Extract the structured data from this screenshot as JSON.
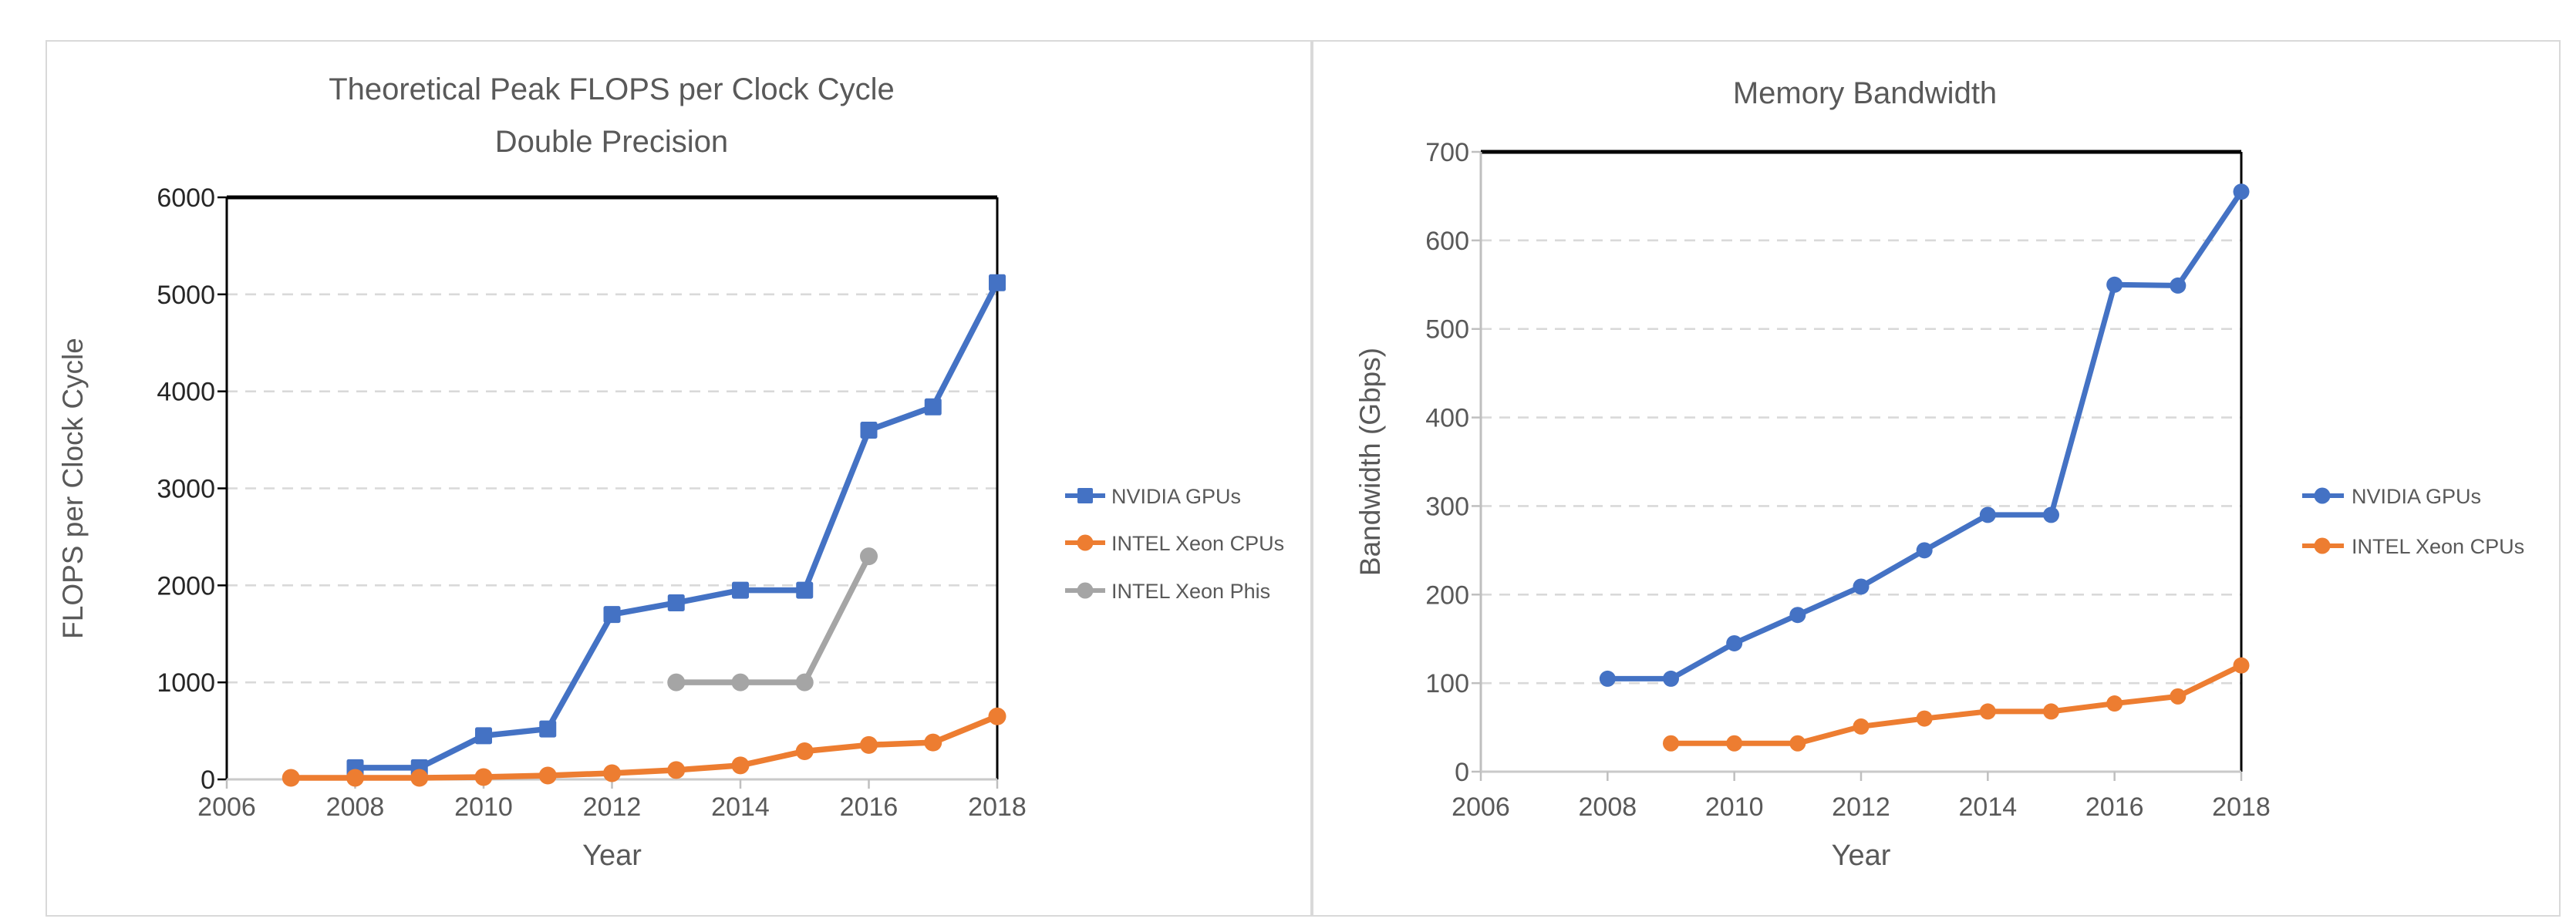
{
  "page": {
    "background": "#ffffff"
  },
  "style": {
    "panel_border": "#D9D9D9",
    "text_color": "#595959",
    "dark_tick_color": "#262626",
    "grid_color": "#D9D9D9",
    "axis_black": "#000000",
    "axis_gray": "#BFBFBF",
    "axis_bottom_gray": "#C9C9C9"
  },
  "chart_data": [
    {
      "id": "flops-per-cycle",
      "type": "line",
      "title": "Theoretical Peak FLOPS per Clock Cycle",
      "subtitle": "Double Precision",
      "xlabel": "Year",
      "ylabel": "FLOPS per Clock Cycle",
      "xlim": [
        2006,
        2018
      ],
      "ylim": [
        0,
        6000
      ],
      "x_ticks": [
        2006,
        2008,
        2010,
        2012,
        2014,
        2016,
        2018
      ],
      "y_ticks": [
        0,
        1000,
        2000,
        3000,
        4000,
        5000,
        6000
      ],
      "grid": "horizontal-dashed",
      "legend_position": "right",
      "y_tick_color": "#262626",
      "series": [
        {
          "name": "NVIDIA GPUs",
          "color": "#4472C4",
          "marker": "square",
          "x": [
            2008,
            2009,
            2010,
            2011,
            2012,
            2013,
            2014,
            2015,
            2016,
            2017,
            2018
          ],
          "y": [
            120,
            120,
            450,
            520,
            1700,
            1820,
            1950,
            1950,
            3600,
            3840,
            5120
          ]
        },
        {
          "name": "INTEL Xeon CPUs",
          "color": "#ED7D31",
          "marker": "circle",
          "x": [
            2007,
            2008,
            2009,
            2010,
            2011,
            2012,
            2013,
            2014,
            2015,
            2016,
            2017,
            2018
          ],
          "y": [
            16,
            16,
            16,
            24,
            40,
            64,
            96,
            144,
            290,
            355,
            380,
            650
          ]
        },
        {
          "name": "INTEL Xeon Phis",
          "color": "#A5A5A5",
          "marker": "circle",
          "x": [
            2013,
            2014,
            2015,
            2016
          ],
          "y": [
            1000,
            1000,
            1000,
            2300
          ]
        }
      ]
    },
    {
      "id": "memory-bandwidth",
      "type": "line",
      "title": "Memory Bandwidth",
      "subtitle": "",
      "xlabel": "Year",
      "ylabel": "Bandwidth (Gbps)",
      "xlim": [
        2006,
        2018
      ],
      "ylim": [
        0,
        700
      ],
      "x_ticks": [
        2006,
        2008,
        2010,
        2012,
        2014,
        2016,
        2018
      ],
      "y_ticks": [
        0,
        100,
        200,
        300,
        400,
        500,
        600,
        700
      ],
      "grid": "horizontal-dashed",
      "legend_position": "right",
      "y_tick_color": "#595959",
      "series": [
        {
          "name": "NVIDIA GPUs",
          "color": "#4472C4",
          "marker": "circle",
          "x": [
            2008,
            2009,
            2010,
            2011,
            2012,
            2013,
            2014,
            2015,
            2016,
            2017,
            2018
          ],
          "y": [
            105,
            105,
            145,
            177,
            209,
            250,
            290,
            290,
            550,
            549,
            655
          ]
        },
        {
          "name": "INTEL Xeon CPUs",
          "color": "#ED7D31",
          "marker": "circle",
          "x": [
            2009,
            2010,
            2011,
            2012,
            2013,
            2014,
            2015,
            2016,
            2017,
            2018
          ],
          "y": [
            32,
            32,
            32,
            51,
            60,
            68,
            68,
            77,
            85,
            120
          ]
        }
      ]
    }
  ]
}
